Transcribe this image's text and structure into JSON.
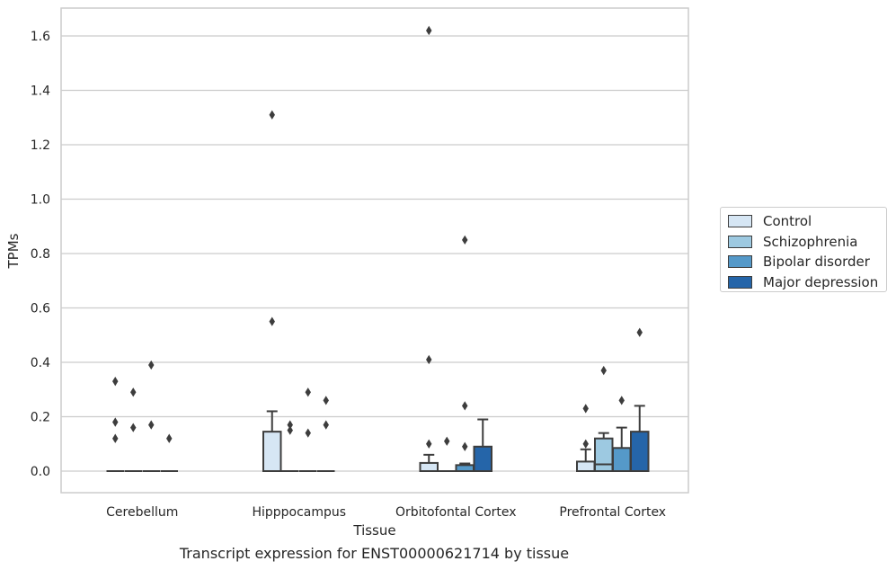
{
  "caption": "Transcript expression for ENST00000621714 by tissue",
  "legend": {
    "placement": "right",
    "items": [
      {
        "label": "Control",
        "color": "#d6e6f4"
      },
      {
        "label": "Schizophrenia",
        "color": "#9dc9e1"
      },
      {
        "label": "Bipolar disorder",
        "color": "#5599c9"
      },
      {
        "label": "Major depression",
        "color": "#2565a9"
      }
    ]
  },
  "chart_data": {
    "type": "box",
    "xlabel": "Tissue",
    "ylabel": "TPMs",
    "ylim": [
      -0.08,
      1.7
    ],
    "yticks": [
      "0.0",
      "0.2",
      "0.4",
      "0.6",
      "0.8",
      "1.0",
      "1.2",
      "1.4",
      "1.6"
    ],
    "grid": "horizontal",
    "categories": [
      "Cerebellum",
      "Hipppocampus",
      "Orbitofontal Cortex",
      "Prefrontal Cortex"
    ],
    "series": [
      {
        "name": "Control",
        "boxes": [
          {
            "q1": 0,
            "median": 0,
            "q3": 0,
            "whisker_low": 0,
            "whisker_high": 0,
            "outliers": [
              0.33,
              0.18,
              0.12
            ]
          },
          {
            "q1": 0,
            "median": 0,
            "q3": 0.145,
            "whisker_low": 0,
            "whisker_high": 0.22,
            "outliers": [
              1.31,
              0.55
            ]
          },
          {
            "q1": 0,
            "median": 0,
            "q3": 0.03,
            "whisker_low": 0,
            "whisker_high": 0.06,
            "outliers": [
              1.62,
              0.41,
              0.1
            ]
          },
          {
            "q1": 0,
            "median": 0,
            "q3": 0.035,
            "whisker_low": 0,
            "whisker_high": 0.08,
            "outliers": [
              0.23,
              0.1
            ]
          }
        ]
      },
      {
        "name": "Schizophrenia",
        "boxes": [
          {
            "q1": 0,
            "median": 0,
            "q3": 0,
            "whisker_low": 0,
            "whisker_high": 0,
            "outliers": [
              0.29,
              0.16
            ]
          },
          {
            "q1": 0,
            "median": 0,
            "q3": 0,
            "whisker_low": 0,
            "whisker_high": 0,
            "outliers": [
              0.17,
              0.15
            ]
          },
          {
            "q1": 0,
            "median": 0,
            "q3": 0,
            "whisker_low": 0,
            "whisker_high": 0,
            "outliers": [
              0.11
            ]
          },
          {
            "q1": 0,
            "median": 0.025,
            "q3": 0.12,
            "whisker_low": 0,
            "whisker_high": 0.14,
            "outliers": [
              0.37
            ]
          }
        ]
      },
      {
        "name": "Bipolar disorder",
        "boxes": [
          {
            "q1": 0,
            "median": 0,
            "q3": 0,
            "whisker_low": 0,
            "whisker_high": 0,
            "outliers": [
              0.39,
              0.17
            ]
          },
          {
            "q1": 0,
            "median": 0,
            "q3": 0,
            "whisker_low": 0,
            "whisker_high": 0,
            "outliers": [
              0.29,
              0.14
            ]
          },
          {
            "q1": 0,
            "median": 0,
            "q3": 0.022,
            "whisker_low": 0,
            "whisker_high": 0.028,
            "outliers": [
              0.85,
              0.24,
              0.09
            ]
          },
          {
            "q1": 0,
            "median": 0,
            "q3": 0.085,
            "whisker_low": 0,
            "whisker_high": 0.16,
            "outliers": [
              0.26
            ]
          }
        ]
      },
      {
        "name": "Major depression",
        "boxes": [
          {
            "q1": 0,
            "median": 0,
            "q3": 0,
            "whisker_low": 0,
            "whisker_high": 0,
            "outliers": [
              0.12
            ]
          },
          {
            "q1": 0,
            "median": 0,
            "q3": 0,
            "whisker_low": 0,
            "whisker_high": 0,
            "outliers": [
              0.26,
              0.17
            ]
          },
          {
            "q1": 0,
            "median": 0,
            "q3": 0.09,
            "whisker_low": 0,
            "whisker_high": 0.19,
            "outliers": []
          },
          {
            "q1": 0,
            "median": 0,
            "q3": 0.145,
            "whisker_low": 0,
            "whisker_high": 0.24,
            "outliers": [
              0.51
            ]
          }
        ]
      }
    ]
  }
}
